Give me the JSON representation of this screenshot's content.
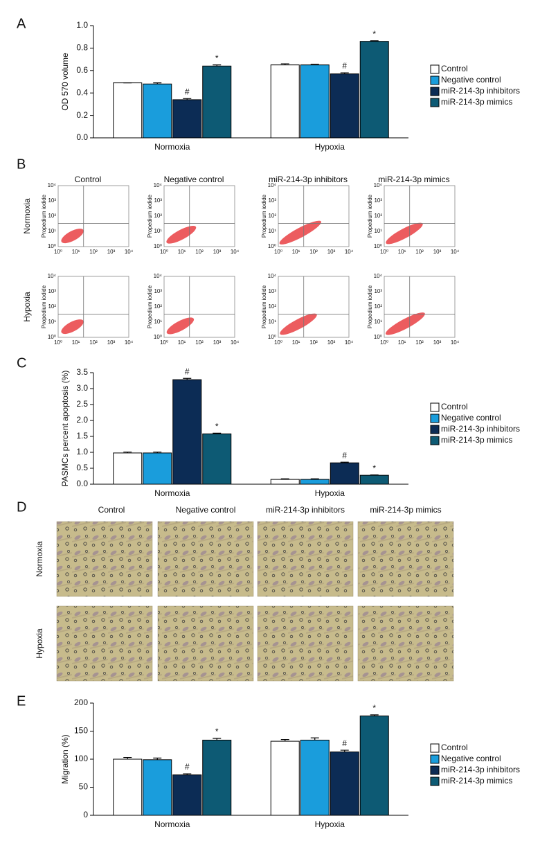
{
  "panels": [
    "A",
    "B",
    "C",
    "D",
    "E"
  ],
  "chart_data": [
    {
      "type": "bar",
      "y_label": "OD 570 volume",
      "categories": [
        "Normoxia",
        "Hypoxia"
      ],
      "ylim": [
        0,
        1.0
      ],
      "yticks": [
        {
          "value": 0,
          "label": "0.0"
        },
        0.2,
        0.4,
        0.6,
        0.8,
        {
          "value": 1.0,
          "label": "1.0"
        }
      ],
      "series": [
        {
          "name": "Control",
          "color": "#ffffff",
          "values": [
            0.49,
            0.65
          ],
          "errors": [
            0,
            0.01
          ],
          "labels": [
            null,
            null
          ]
        },
        {
          "name": "Negative control",
          "color": "#1a9ddc",
          "values": [
            0.48,
            0.65
          ],
          "errors": [
            0.01,
            0.005
          ],
          "labels": [
            null,
            null
          ]
        },
        {
          "name": "miR-214-3p inhibitors",
          "color": "#0c2c55",
          "values": [
            0.34,
            0.57
          ],
          "errors": [
            0.01,
            0.01
          ],
          "labels": [
            "#",
            "#"
          ]
        },
        {
          "name": "miR-214-3p mimics",
          "color": "#0d5a74",
          "values": [
            0.64,
            0.86
          ],
          "errors": [
            0.01,
            0.005
          ],
          "labels": [
            "*",
            "*"
          ]
        }
      ]
    },
    {
      "type": "bar",
      "y_label": "PASMCs percent apoptosis (%)",
      "categories": [
        "Normoxia",
        "Hypoxia"
      ],
      "ylim": [
        0,
        3.5
      ],
      "yticks": [
        {
          "value": 0,
          "label": "0.0"
        },
        0.5,
        {
          "value": 1,
          "label": "1.0"
        },
        1.5,
        {
          "value": 2,
          "label": "2.0"
        },
        2.5,
        {
          "value": 3,
          "label": "3.0"
        },
        3.5
      ],
      "series": [
        {
          "name": "Control",
          "color": "#ffffff",
          "values": [
            0.98,
            0.15
          ],
          "errors": [
            0.03,
            0.02
          ],
          "labels": [
            null,
            null
          ]
        },
        {
          "name": "Negative control",
          "color": "#1a9ddc",
          "values": [
            0.98,
            0.15
          ],
          "errors": [
            0.03,
            0.02
          ],
          "labels": [
            null,
            null
          ]
        },
        {
          "name": "miR-214-3p inhibitors",
          "color": "#0c2c55",
          "values": [
            3.28,
            0.67
          ],
          "errors": [
            0.04,
            0.02
          ],
          "labels": [
            "#",
            "#"
          ]
        },
        {
          "name": "miR-214-3p mimics",
          "color": "#0d5a74",
          "values": [
            1.58,
            0.28
          ],
          "errors": [
            0.02,
            0.01
          ],
          "labels": [
            "*",
            "*"
          ]
        }
      ]
    },
    {
      "type": "bar",
      "y_label": "Migration (%)",
      "categories": [
        "Normoxia",
        "Hypoxia"
      ],
      "ylim": [
        0,
        200
      ],
      "yticks": [
        0,
        50,
        100,
        150,
        200
      ],
      "series": [
        {
          "name": "Control",
          "color": "#ffffff",
          "values": [
            100,
            132
          ],
          "errors": [
            3,
            3
          ],
          "labels": [
            null,
            null
          ]
        },
        {
          "name": "Negative control",
          "color": "#1a9ddc",
          "values": [
            99,
            134
          ],
          "errors": [
            3,
            4
          ],
          "labels": [
            null,
            null
          ]
        },
        {
          "name": "miR-214-3p inhibitors",
          "color": "#0c2c55",
          "values": [
            72,
            113
          ],
          "errors": [
            2,
            3
          ],
          "labels": [
            "#",
            "#"
          ]
        },
        {
          "name": "miR-214-3p mimics",
          "color": "#0d5a74",
          "values": [
            134,
            177
          ],
          "errors": [
            3,
            2
          ],
          "labels": [
            "*",
            "*"
          ]
        }
      ]
    }
  ],
  "flow": {
    "columns": [
      "Control",
      "Negative control",
      "miR-214-3p inhibitors",
      "miR-214-3p mimics"
    ],
    "rows": [
      "Normoxia",
      "Hypoxia"
    ],
    "y_label": "Propedium iodide",
    "ticks": [
      "10⁰",
      "10¹",
      "10²",
      "10³",
      "10⁴"
    ]
  },
  "micrographs": {
    "columns": [
      "Control",
      "Negative control",
      "miR-214-3p inhibitors",
      "miR-214-3p mimics"
    ],
    "rows": [
      "Normoxia",
      "Hypoxia"
    ]
  }
}
